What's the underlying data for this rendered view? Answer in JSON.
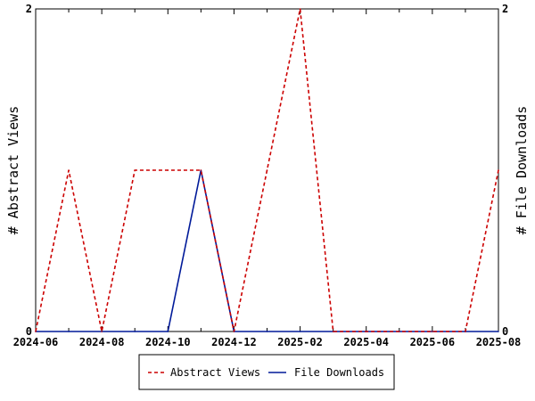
{
  "chart_data": {
    "type": "line",
    "x": [
      "2024-06",
      "2024-07",
      "2024-08",
      "2024-09",
      "2024-10",
      "2024-11",
      "2024-12",
      "2025-01",
      "2025-02",
      "2025-03",
      "2025-04",
      "2025-05",
      "2025-06",
      "2025-07",
      "2025-08"
    ],
    "xticks": [
      "2024-06",
      "2024-08",
      "2024-10",
      "2024-12",
      "2025-02",
      "2025-04",
      "2025-06",
      "2025-08"
    ],
    "series": [
      {
        "name": "Abstract Views",
        "axis": "left",
        "color": "#cc0000",
        "style": "dashed",
        "values": [
          0,
          1,
          0,
          1,
          1,
          1,
          0,
          1,
          2,
          0,
          0,
          0,
          0,
          0,
          1
        ]
      },
      {
        "name": "File Downloads",
        "axis": "right",
        "color": "#001a99",
        "style": "solid",
        "values": [
          0,
          0,
          0,
          0,
          0,
          1,
          0,
          0,
          0,
          0,
          0,
          0,
          0,
          0,
          0
        ]
      }
    ],
    "ylabel_left": "# Abstract Views",
    "ylabel_right": "# File Downloads",
    "ylim_left": [
      0,
      2
    ],
    "ylim_right": [
      0,
      2
    ],
    "yticks_left": [
      "0",
      "2"
    ],
    "yticks_right": [
      "0",
      "2"
    ],
    "grid": false,
    "legend": "bottom-center"
  }
}
